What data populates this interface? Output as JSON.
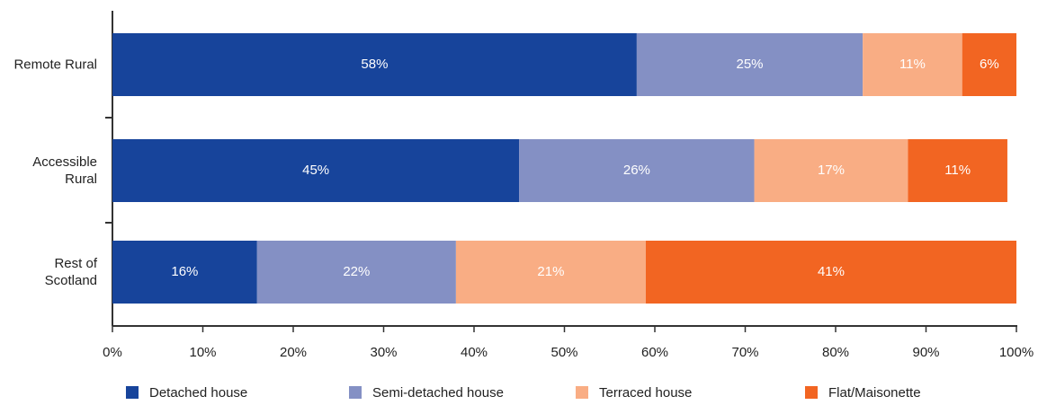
{
  "chart_data": {
    "type": "stacked_barh",
    "categories": [
      "Remote Rural",
      "Accessible Rural",
      "Rest of Scotland"
    ],
    "series": [
      {
        "name": "Detached house",
        "color": "#17449b",
        "values": [
          58,
          45,
          16
        ],
        "value_labels": [
          "58%",
          "45%",
          "16%"
        ]
      },
      {
        "name": "Semi-detached house",
        "color": "#8490c4",
        "values": [
          25,
          26,
          22
        ],
        "value_labels": [
          "25%",
          "26%",
          "22%"
        ]
      },
      {
        "name": "Terraced house",
        "color": "#f9ad84",
        "values": [
          11,
          17,
          21
        ],
        "value_labels": [
          "11%",
          "17%",
          "21%"
        ]
      },
      {
        "name": "Flat/Maisonette",
        "color": "#f26522",
        "values": [
          6,
          11,
          41
        ],
        "value_labels": [
          "6%",
          "11%",
          "41%"
        ]
      }
    ],
    "xlim": [
      0,
      100
    ],
    "xticks": [
      {
        "value": 0,
        "label": "0%"
      },
      {
        "value": 10,
        "label": "10%"
      },
      {
        "value": 20,
        "label": "20%"
      },
      {
        "value": 30,
        "label": "30%"
      },
      {
        "value": 40,
        "label": "40%"
      },
      {
        "value": 50,
        "label": "50%"
      },
      {
        "value": 60,
        "label": "60%"
      },
      {
        "value": 70,
        "label": "70%"
      },
      {
        "value": 80,
        "label": "80%"
      },
      {
        "value": 90,
        "label": "90%"
      },
      {
        "value": 100,
        "label": "100%"
      }
    ],
    "legend": "bottom"
  }
}
